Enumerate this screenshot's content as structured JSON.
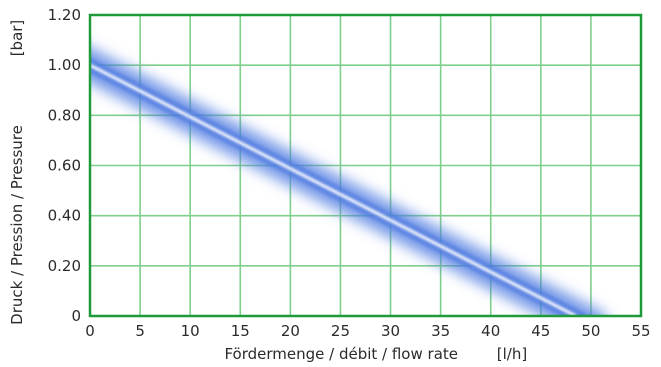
{
  "chart_data": {
    "type": "line",
    "title": "",
    "xlabel": "Fördermenge / débit / flow rate",
    "xunit": "[l/h]",
    "ylabel": "Druck / Pression / Pressure",
    "yunit": "[bar]",
    "xlim": [
      0,
      55
    ],
    "ylim": [
      0,
      1.2
    ],
    "x_ticks": [
      "0",
      "5",
      "10",
      "15",
      "20",
      "25",
      "30",
      "35",
      "40",
      "45",
      "50",
      "55"
    ],
    "y_ticks": [
      "0",
      "0.20",
      "0.40",
      "0.60",
      "0.80",
      "1.00",
      "1.20"
    ],
    "grid": true,
    "series": [
      {
        "x": [
          0,
          48.5
        ],
        "y": [
          1.0,
          0.0
        ],
        "band": 0.07
      }
    ],
    "colors": {
      "frame": "#1f9a3a",
      "grid": "#7fcf8c",
      "line": "#ffffff",
      "band": "#4a78e0"
    }
  }
}
